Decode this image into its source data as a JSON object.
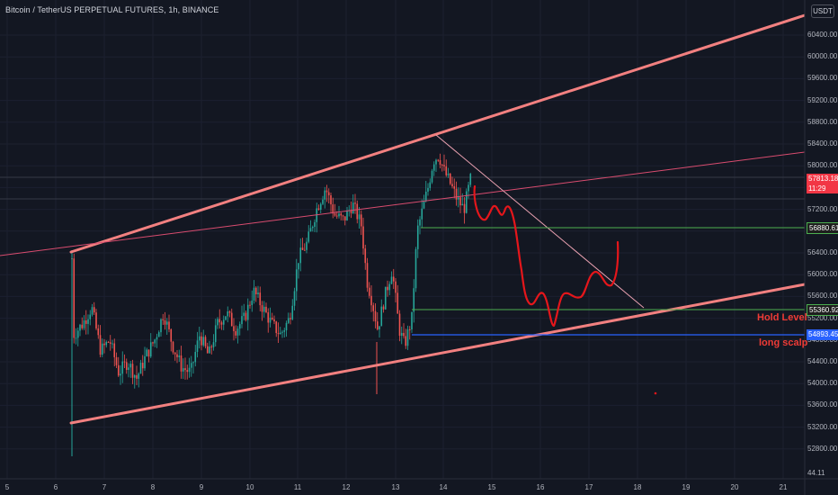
{
  "header": {
    "title": "Bitcoin / TetherUS PERPETUAL FUTURES, 1h, BINANCE",
    "currency": "USDT"
  },
  "price_axis": {
    "ticks": [
      "60400.00",
      "60000.00",
      "59600.00",
      "59200.00",
      "58800.00",
      "58400.00",
      "58000.00",
      "57600.00",
      "57200.00",
      "56800.00",
      "56400.00",
      "56000.00",
      "55600.00",
      "55200.00",
      "54800.00",
      "54400.00",
      "54000.00",
      "53600.00",
      "53200.00",
      "52800.00"
    ],
    "bottom_label": "44.11"
  },
  "time_axis": {
    "ticks": [
      "5",
      "6",
      "7",
      "8",
      "9",
      "10",
      "11",
      "12",
      "13",
      "14",
      "15",
      "16",
      "17",
      "18",
      "19",
      "20",
      "21"
    ]
  },
  "price_tags": {
    "current_price": "57813.18",
    "countdown": "11:29",
    "level_1": "56880.61",
    "level_2": "55360.92",
    "level_3": "54893.45"
  },
  "annotations": {
    "hold_level": "Hold Level",
    "long_scalp": "long scalp"
  },
  "colors": {
    "background": "#131722",
    "channel": "#f28080",
    "up_candle": "#26a69a",
    "down_candle": "#ef5350",
    "green_level": "#4caf50",
    "blue_level": "#2962ff",
    "projection": "#e5161b",
    "current_price_tag": "#f23645"
  },
  "chart_data": {
    "type": "candlestick",
    "symbol": "BTCUSDT PERP",
    "timeframe": "1h",
    "ylim": [
      52600,
      60800
    ],
    "horizontal_levels": [
      56880.61,
      55360.92,
      54893.45
    ],
    "current_price": 57813.18
  }
}
